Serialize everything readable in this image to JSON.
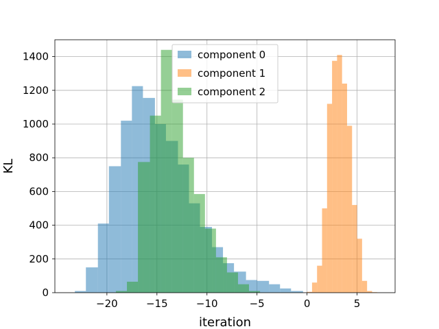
{
  "chart_data": {
    "type": "histogram",
    "title": "",
    "xlabel": "iteration",
    "ylabel": "KL",
    "xlim": [
      -25.2,
      8.8
    ],
    "ylim": [
      0,
      1500
    ],
    "x_ticks": [
      -20,
      -15,
      -10,
      -5,
      0,
      5
    ],
    "x_tick_labels": [
      "−20",
      "−15",
      "−10",
      "−5",
      "0",
      "5"
    ],
    "y_ticks": [
      0,
      200,
      400,
      600,
      800,
      1000,
      1200,
      1400
    ],
    "y_tick_labels": [
      "0",
      "200",
      "400",
      "600",
      "800",
      "1000",
      "1200",
      "1400"
    ],
    "grid": true,
    "legend_placement": "upper-center",
    "series": [
      {
        "name": "component 0",
        "color": "#1f77b4",
        "alpha": 0.5,
        "bins": [
          [
            -23.2,
            -22.1,
            10
          ],
          [
            -22.1,
            -20.9,
            150
          ],
          [
            -20.9,
            -19.8,
            410
          ],
          [
            -19.8,
            -18.6,
            750
          ],
          [
            -18.6,
            -17.5,
            1020
          ],
          [
            -17.5,
            -16.4,
            1225
          ],
          [
            -16.4,
            -15.2,
            1155
          ],
          [
            -15.2,
            -14.1,
            1000
          ],
          [
            -14.1,
            -12.9,
            900
          ],
          [
            -12.9,
            -11.8,
            760
          ],
          [
            -11.8,
            -10.7,
            530
          ],
          [
            -10.7,
            -9.5,
            390
          ],
          [
            -9.5,
            -8.4,
            270
          ],
          [
            -8.4,
            -7.3,
            175
          ],
          [
            -7.3,
            -6.1,
            125
          ],
          [
            -6.1,
            -5.0,
            75
          ],
          [
            -5.0,
            -3.8,
            70
          ],
          [
            -3.8,
            -2.7,
            50
          ],
          [
            -2.7,
            -1.6,
            25
          ],
          [
            -1.6,
            -0.4,
            10
          ]
        ]
      },
      {
        "name": "component 1",
        "color": "#ff7f0e",
        "alpha": 0.5,
        "bins": [
          [
            0.0,
            0.5,
            5
          ],
          [
            0.5,
            1.0,
            60
          ],
          [
            1.0,
            1.5,
            160
          ],
          [
            1.5,
            2.0,
            500
          ],
          [
            2.0,
            2.5,
            1120
          ],
          [
            2.5,
            3.0,
            1375
          ],
          [
            3.0,
            3.5,
            1410
          ],
          [
            3.5,
            4.0,
            1240
          ],
          [
            4.0,
            4.5,
            990
          ],
          [
            4.5,
            5.0,
            520
          ],
          [
            5.0,
            5.5,
            320
          ],
          [
            5.5,
            6.0,
            70
          ],
          [
            6.0,
            6.5,
            10
          ],
          [
            6.5,
            7.0,
            3
          ]
        ]
      },
      {
        "name": "component 2",
        "color": "#2ca02c",
        "alpha": 0.5,
        "bins": [
          [
            -19.1,
            -18.0,
            10
          ],
          [
            -18.0,
            -16.9,
            65
          ],
          [
            -16.9,
            -15.7,
            775
          ],
          [
            -15.7,
            -14.6,
            1050
          ],
          [
            -14.6,
            -13.5,
            1440
          ],
          [
            -13.5,
            -12.4,
            1145
          ],
          [
            -12.4,
            -11.3,
            800
          ],
          [
            -11.3,
            -10.2,
            585
          ],
          [
            -10.2,
            -9.1,
            380
          ],
          [
            -9.1,
            -8.0,
            210
          ],
          [
            -8.0,
            -6.9,
            120
          ],
          [
            -6.9,
            -5.8,
            50
          ],
          [
            -5.8,
            -4.7,
            10
          ]
        ]
      }
    ]
  }
}
